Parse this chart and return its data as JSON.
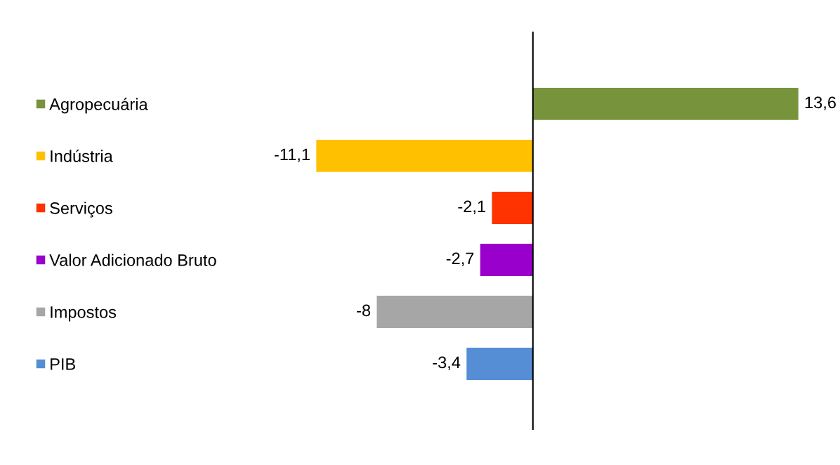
{
  "chart_data": {
    "type": "bar",
    "orientation": "horizontal",
    "categories": [
      "Agropecuária",
      "Indústria",
      "Serviços",
      "Valor Adicionado Bruto",
      "Impostos",
      "PIB"
    ],
    "values": [
      13.6,
      -11.1,
      -2.1,
      -2.7,
      -8,
      -3.4
    ],
    "colors": [
      "#77933c",
      "#ffc000",
      "#ff3300",
      "#9900cc",
      "#a6a6a6",
      "#558ed5"
    ],
    "value_labels": [
      "13,6",
      "-11,1",
      "-2,1",
      "-2,7",
      "-8",
      "-3,4"
    ],
    "grid": false
  }
}
